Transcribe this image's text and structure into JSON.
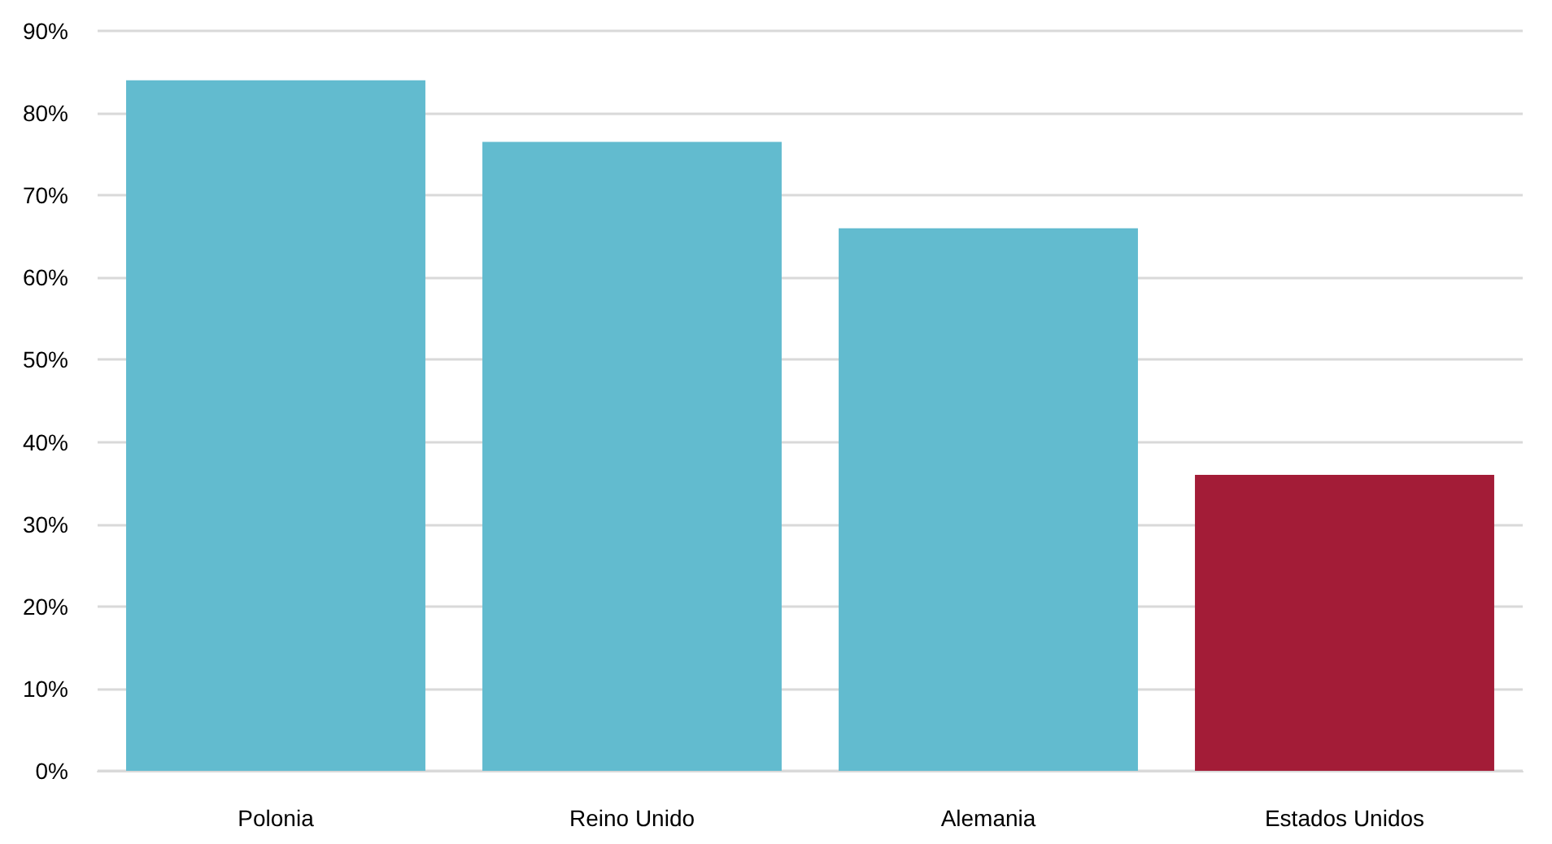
{
  "chart_data": {
    "type": "bar",
    "categories": [
      "Polonia",
      "Reino Unido",
      "Alemania",
      "Estados Unidos"
    ],
    "values": [
      84,
      76.5,
      66,
      36
    ],
    "colors": [
      "#62bbcf",
      "#62bbcf",
      "#62bbcf",
      "#a31c37"
    ],
    "ylim": [
      0,
      90
    ],
    "yticks": [
      {
        "value": 0,
        "label": "0%"
      },
      {
        "value": 10,
        "label": "10%"
      },
      {
        "value": 20,
        "label": "20%"
      },
      {
        "value": 30,
        "label": "30%"
      },
      {
        "value": 40,
        "label": "40%"
      },
      {
        "value": 50,
        "label": "50%"
      },
      {
        "value": 60,
        "label": "60%"
      },
      {
        "value": 70,
        "label": "70%"
      },
      {
        "value": 80,
        "label": "80%"
      },
      {
        "value": 90,
        "label": "90%"
      }
    ],
    "grid": "y"
  }
}
